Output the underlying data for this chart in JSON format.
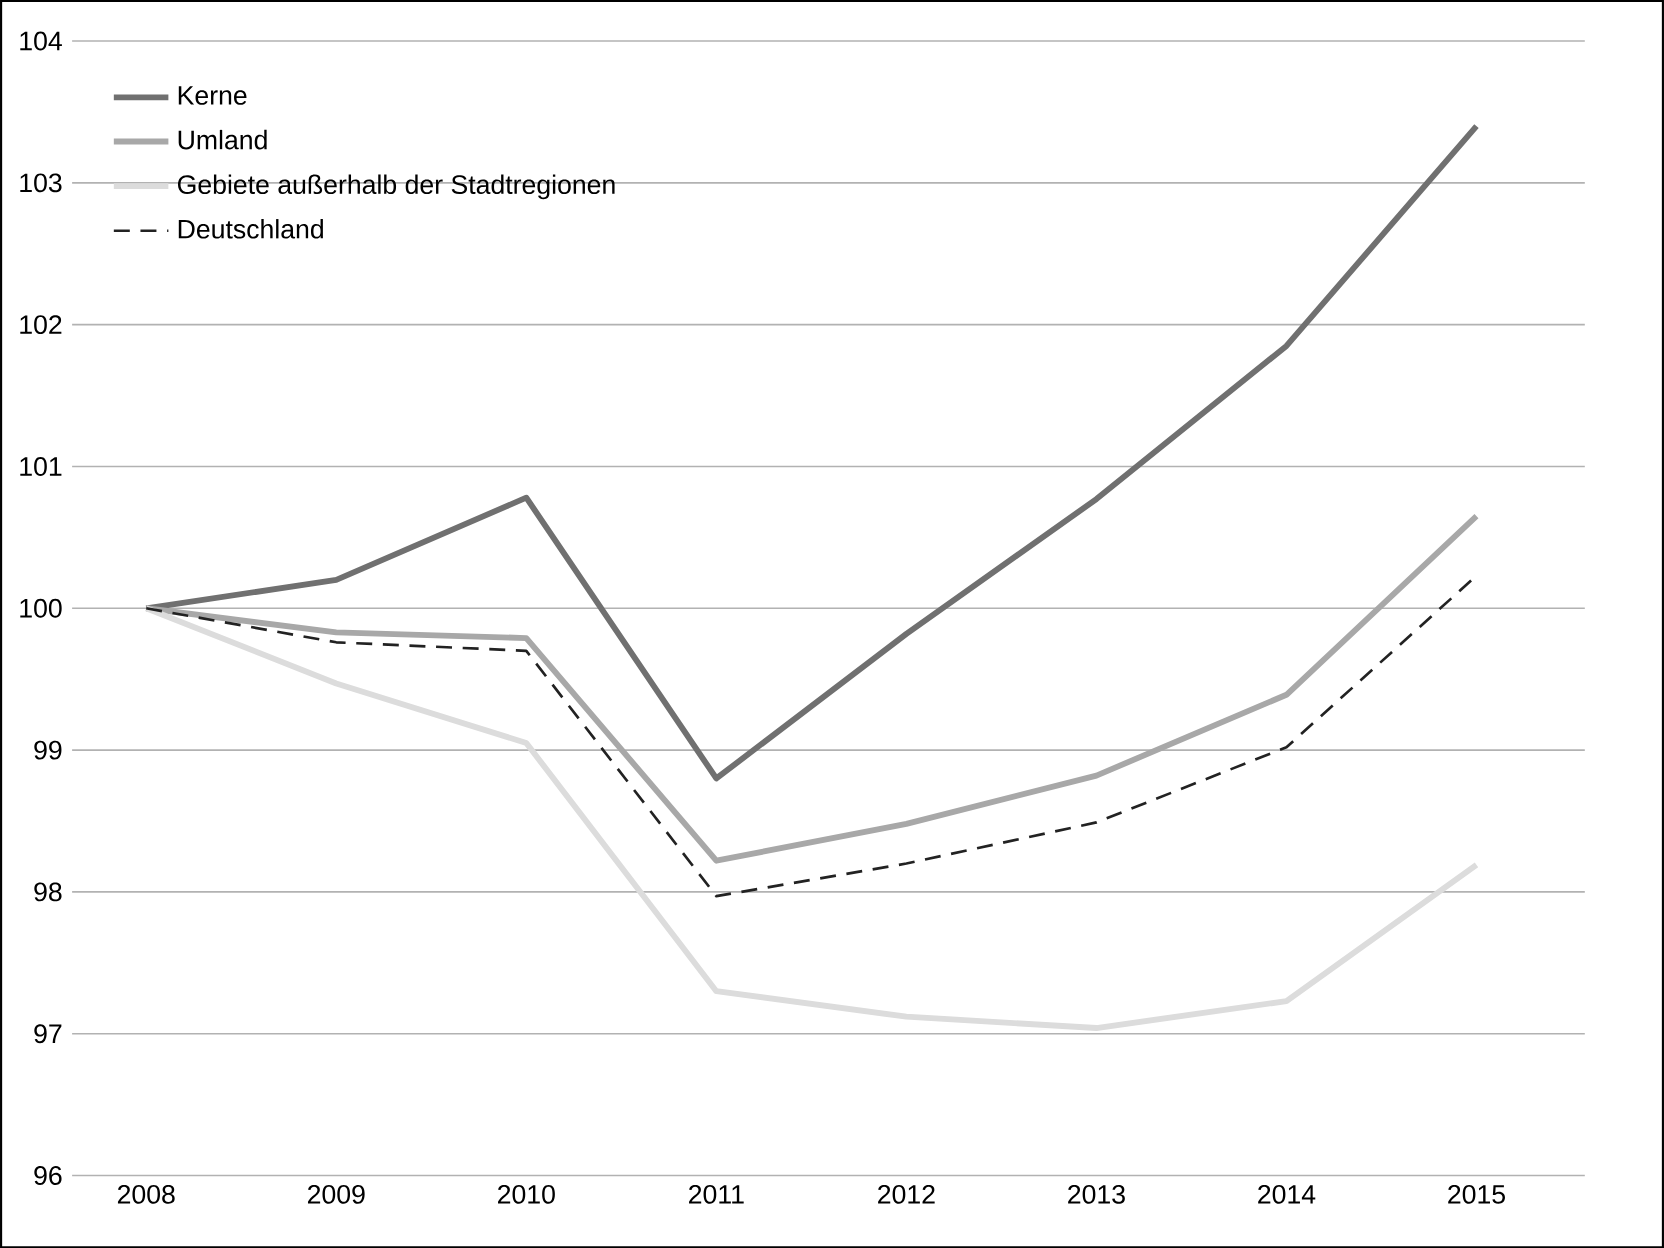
{
  "chart_data": {
    "type": "line",
    "categories": [
      "2008",
      "2009",
      "2010",
      "2011",
      "2012",
      "2013",
      "2014",
      "2015"
    ],
    "series": [
      {
        "name": "Kerne",
        "color": "#707070",
        "values": [
          100,
          100.2,
          100.78,
          98.8,
          99.82,
          100.77,
          101.85,
          103.4
        ]
      },
      {
        "name": "Umland",
        "color": "#a8a8a8",
        "values": [
          100,
          99.83,
          99.79,
          98.22,
          98.48,
          98.82,
          99.39,
          100.65
        ]
      },
      {
        "name": "Gebiete außerhalb der Stadtregionen",
        "color": "#dcdcdc",
        "values": [
          100,
          99.47,
          99.05,
          97.3,
          97.12,
          97.04,
          97.23,
          98.19
        ]
      },
      {
        "name": "Deutschland",
        "color": "#222222",
        "line_style": "dashed",
        "values": [
          100,
          99.76,
          99.7,
          97.97,
          98.2,
          98.49,
          99.02,
          100.23
        ]
      }
    ],
    "ylim": [
      96,
      104
    ],
    "yticks": [
      96,
      97,
      98,
      99,
      100,
      101,
      102,
      103,
      104
    ],
    "grid": "y",
    "legend": "top left"
  }
}
